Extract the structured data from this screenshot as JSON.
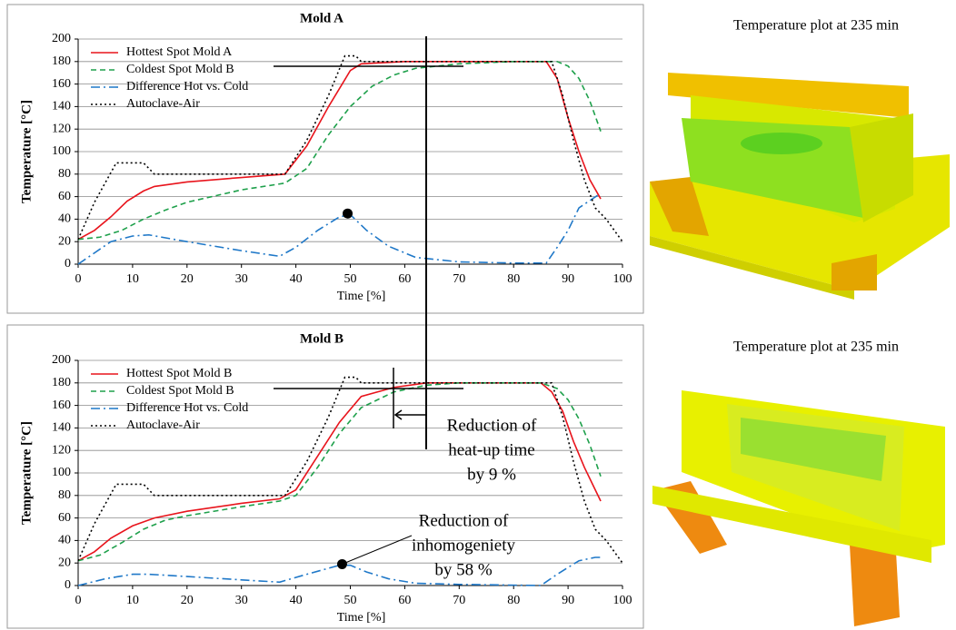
{
  "chart_data": [
    {
      "type": "line",
      "title": "Mold A",
      "x_label": "Time [%]",
      "y_label": "Temperature [°C]",
      "xlim": [
        0,
        100
      ],
      "xticks": [
        0,
        10,
        20,
        30,
        40,
        50,
        60,
        70,
        80,
        90,
        100
      ],
      "ylim": [
        0,
        200
      ],
      "yticks": [
        0,
        20,
        40,
        60,
        80,
        100,
        120,
        140,
        160,
        180,
        200
      ],
      "grid": true,
      "legend": "upper-left",
      "series": [
        {
          "name": "Hottest Spot Mold A",
          "color": "#e8141c",
          "style": "solid",
          "x": [
            0,
            3,
            6,
            9,
            12,
            14,
            20,
            30,
            38,
            42,
            46,
            50,
            52,
            60,
            70,
            80,
            86,
            88,
            90,
            92,
            94,
            96
          ],
          "values": [
            22,
            30,
            42,
            56,
            65,
            69,
            73,
            77,
            80,
            105,
            140,
            172,
            178,
            180,
            180,
            180,
            180,
            165,
            130,
            100,
            75,
            58
          ]
        },
        {
          "name": "Coldest Spot Mold B",
          "color": "#1ea04b",
          "style": "dashed",
          "x": [
            0,
            4,
            8,
            12,
            16,
            20,
            30,
            38,
            42,
            46,
            50,
            54,
            58,
            62,
            70,
            80,
            88,
            90,
            92,
            94,
            96
          ],
          "values": [
            22,
            24,
            30,
            40,
            48,
            55,
            66,
            72,
            85,
            115,
            140,
            158,
            168,
            174,
            178,
            180,
            180,
            176,
            165,
            145,
            118
          ]
        },
        {
          "name": "Difference Hot vs. Cold",
          "color": "#1f78c8",
          "style": "dashdot",
          "x": [
            0,
            3,
            6,
            10,
            13,
            20,
            30,
            37,
            40,
            44,
            48,
            50,
            53,
            57,
            62,
            70,
            80,
            86,
            88,
            90,
            92,
            96
          ],
          "values": [
            0,
            10,
            20,
            25,
            26,
            20,
            12,
            7,
            15,
            30,
            42,
            44,
            30,
            16,
            6,
            2,
            1,
            1,
            15,
            30,
            50,
            63
          ]
        },
        {
          "name": "Autoclave-Air",
          "color": "#000000",
          "style": "dotted",
          "x": [
            0,
            3,
            7,
            12,
            14,
            38,
            42,
            46,
            49,
            51,
            52,
            54,
            87,
            89,
            91,
            93,
            95,
            97,
            100
          ],
          "values": [
            22,
            55,
            90,
            90,
            80,
            80,
            110,
            150,
            185,
            185,
            180,
            180,
            180,
            150,
            110,
            75,
            50,
            40,
            20
          ]
        }
      ],
      "highlight": {
        "x": 49.5,
        "y": 45
      }
    },
    {
      "type": "line",
      "title": "Mold B",
      "x_label": "Time [%]",
      "y_label": "Temperature [°C]",
      "xlim": [
        0,
        100
      ],
      "xticks": [
        0,
        10,
        20,
        30,
        40,
        50,
        60,
        70,
        80,
        90,
        100
      ],
      "ylim": [
        0,
        200
      ],
      "yticks": [
        0,
        20,
        40,
        60,
        80,
        100,
        120,
        140,
        160,
        180,
        200
      ],
      "grid": true,
      "legend": "upper-left",
      "series": [
        {
          "name": "Hottest Spot Mold B",
          "color": "#e8141c",
          "style": "solid",
          "x": [
            0,
            3,
            6,
            10,
            14,
            20,
            30,
            37,
            40,
            44,
            48,
            52,
            58,
            64,
            70,
            85,
            87,
            89,
            91,
            93,
            95,
            96
          ],
          "values": [
            22,
            30,
            42,
            53,
            60,
            66,
            73,
            77,
            85,
            115,
            145,
            168,
            176,
            180,
            180,
            180,
            172,
            155,
            128,
            105,
            85,
            75
          ]
        },
        {
          "name": "Coldest Spot Mold B",
          "color": "#1ea04b",
          "style": "dashed",
          "x": [
            0,
            4,
            8,
            12,
            16,
            20,
            30,
            37,
            40,
            44,
            48,
            52,
            58,
            64,
            70,
            85,
            88,
            90,
            92,
            94,
            96
          ],
          "values": [
            22,
            27,
            38,
            50,
            58,
            62,
            70,
            75,
            80,
            105,
            135,
            158,
            172,
            178,
            180,
            180,
            175,
            165,
            148,
            125,
            97
          ]
        },
        {
          "name": "Difference Hot vs. Cold",
          "color": "#1f78c8",
          "style": "dashdot",
          "x": [
            0,
            5,
            10,
            13,
            20,
            30,
            37,
            42,
            48,
            50,
            53,
            57,
            62,
            70,
            85,
            88,
            92,
            95,
            96
          ],
          "values": [
            0,
            6,
            10,
            10,
            8,
            5,
            3,
            10,
            18,
            18,
            12,
            6,
            2,
            1,
            0,
            10,
            22,
            25,
            25
          ]
        },
        {
          "name": "Autoclave-Air",
          "color": "#000000",
          "style": "dotted",
          "x": [
            0,
            3,
            7,
            12,
            14,
            38,
            42,
            46,
            49,
            51,
            52,
            54,
            87,
            89,
            91,
            93,
            95,
            97,
            100
          ],
          "values": [
            22,
            55,
            90,
            90,
            80,
            80,
            110,
            150,
            185,
            185,
            180,
            180,
            180,
            150,
            110,
            75,
            50,
            40,
            20
          ]
        }
      ],
      "highlight": {
        "x": 48.5,
        "y": 19
      },
      "annotations": [
        {
          "lines": [
            "Reduction of",
            "heat-up time",
            "by 9 %"
          ]
        },
        {
          "lines": [
            "Reduction of",
            "inhomogeniety",
            "by 58 %"
          ]
        }
      ]
    }
  ],
  "images": [
    {
      "caption": "Temperature plot at 235 min"
    },
    {
      "caption": "Temperature plot at 235 min"
    }
  ]
}
